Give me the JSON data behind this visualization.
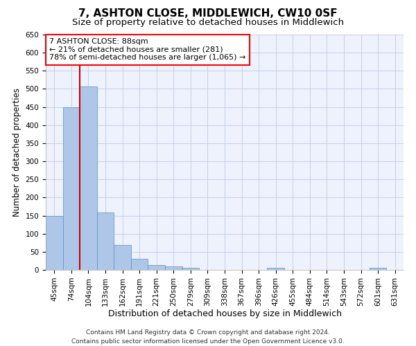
{
  "title": "7, ASHTON CLOSE, MIDDLEWICH, CW10 0SF",
  "subtitle": "Size of property relative to detached houses in Middlewich",
  "xlabel": "Distribution of detached houses by size in Middlewich",
  "ylabel": "Number of detached properties",
  "categories": [
    "45sqm",
    "74sqm",
    "104sqm",
    "133sqm",
    "162sqm",
    "191sqm",
    "221sqm",
    "250sqm",
    "279sqm",
    "309sqm",
    "338sqm",
    "367sqm",
    "396sqm",
    "426sqm",
    "455sqm",
    "484sqm",
    "514sqm",
    "543sqm",
    "572sqm",
    "601sqm",
    "631sqm"
  ],
  "values": [
    149,
    450,
    507,
    159,
    68,
    30,
    13,
    9,
    5,
    0,
    0,
    0,
    0,
    6,
    0,
    0,
    0,
    0,
    0,
    6,
    0
  ],
  "bar_color": "#aec6e8",
  "bar_edge_color": "#5a8fc0",
  "vline_x": 1.5,
  "vline_color": "#cc0000",
  "annotation_text": "7 ASHTON CLOSE: 88sqm\n← 21% of detached houses are smaller (281)\n78% of semi-detached houses are larger (1,065) →",
  "ylim": [
    0,
    650
  ],
  "yticks": [
    0,
    50,
    100,
    150,
    200,
    250,
    300,
    350,
    400,
    450,
    500,
    550,
    600,
    650
  ],
  "footer": "Contains HM Land Registry data © Crown copyright and database right 2024.\nContains public sector information licensed under the Open Government Licence v3.0.",
  "bg_color": "#edf2fc",
  "grid_color": "#c5cfe8",
  "title_fontsize": 11,
  "subtitle_fontsize": 9.5,
  "axis_label_fontsize": 8.5,
  "tick_fontsize": 7.5,
  "annotation_fontsize": 8,
  "footer_fontsize": 6.5
}
